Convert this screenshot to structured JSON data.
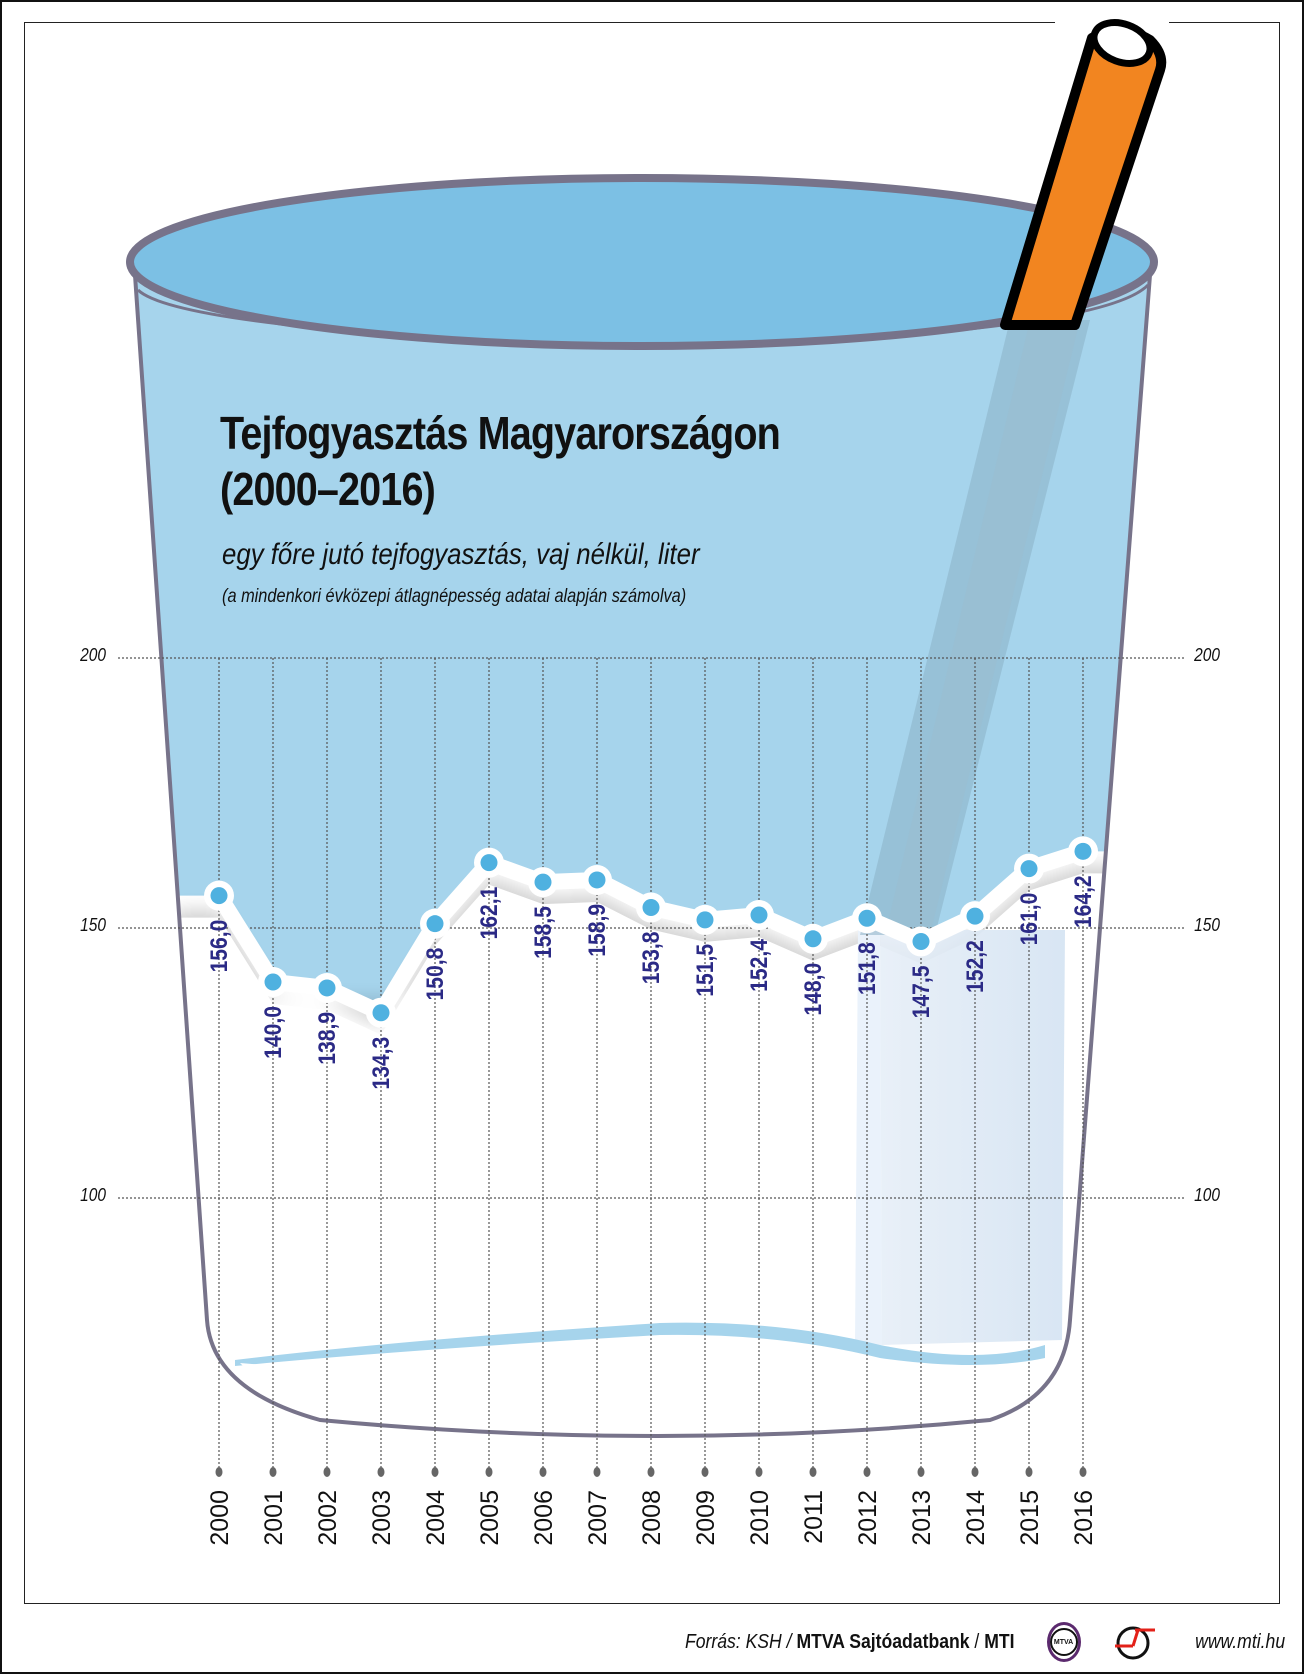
{
  "title_line1": "Tejfogyasztás Magyarországon",
  "title_line2": "(2000–2016)",
  "subtitle": "egy főre jutó tejfogyasztás, vaj nélkül, liter",
  "note": "(a mindenkori évközepi átlagnépesség adatai alapján számolva)",
  "y_ticks": [
    "200",
    "150",
    "100"
  ],
  "footer": {
    "source_prefix": "Forrás: KSH / ",
    "source_bold": "MTVA Sajtóadatbank",
    "source_sep": " / ",
    "source_mti": "MTI",
    "mtva_logo_text": "MTVA",
    "url": "www.mti.hu"
  },
  "colors": {
    "liquid": "#a6d4ec",
    "liquid_top": "#7cc0e4",
    "glass_edge": "#77738a",
    "marker": "#4fb1e0",
    "label": "#2b2a86",
    "straw": "#f28520"
  },
  "chart_data": {
    "type": "line",
    "title": "Tejfogyasztás Magyarországon (2000–2016)",
    "subtitle": "egy főre jutó tejfogyasztás, vaj nélkül, liter",
    "xlabel": "",
    "ylabel": "liter",
    "ylim": [
      100,
      200
    ],
    "yticks": [
      100,
      150,
      200
    ],
    "grid": true,
    "categories": [
      "2000",
      "2001",
      "2002",
      "2003",
      "2004",
      "2005",
      "2006",
      "2007",
      "2008",
      "2009",
      "2010",
      "2011",
      "2012",
      "2013",
      "2014",
      "2015",
      "2016"
    ],
    "values": [
      156.0,
      140.0,
      138.9,
      134.3,
      150.8,
      162.1,
      158.5,
      158.9,
      153.8,
      151.5,
      152.4,
      148.0,
      151.8,
      147.5,
      152.2,
      161.0,
      164.2
    ],
    "value_labels": [
      "156,0",
      "140,0",
      "138,9",
      "134,3",
      "150,8",
      "162,1",
      "158,5",
      "158,9",
      "153,8",
      "151,5",
      "152,4",
      "148,0",
      "151,8",
      "147,5",
      "152,2",
      "161,0",
      "164,2"
    ]
  }
}
